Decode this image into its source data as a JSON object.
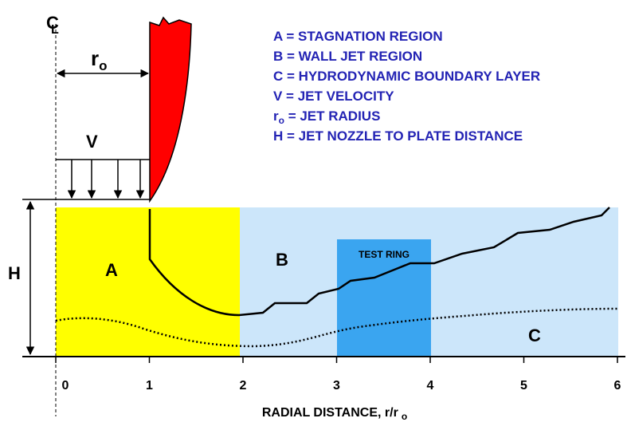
{
  "centerline": {
    "c": "C",
    "l": "L"
  },
  "radius_label": {
    "base": "r",
    "sub": "o"
  },
  "velocity_label": "V",
  "legend": [
    {
      "text": "A = STAGNATION REGION"
    },
    {
      "text": "B = WALL JET REGION"
    },
    {
      "text": "C = HYDRODYNAMIC BOUNDARY LAYER"
    },
    {
      "text": "V  = JET VELOCITY"
    },
    {
      "base": "r",
      "sub": "o",
      "text": " = JET RADIUS"
    },
    {
      "text": "H = JET NOZZLE TO PLATE DISTANCE"
    }
  ],
  "regions": {
    "a": "A",
    "b": "B",
    "c": "C",
    "h": "H",
    "test_ring": "TEST RING"
  },
  "axis": {
    "ticks": [
      0,
      1,
      2,
      3,
      4,
      5,
      6
    ],
    "label": "RADIAL DISTANCE, r/r",
    "label_sub": "o"
  }
}
